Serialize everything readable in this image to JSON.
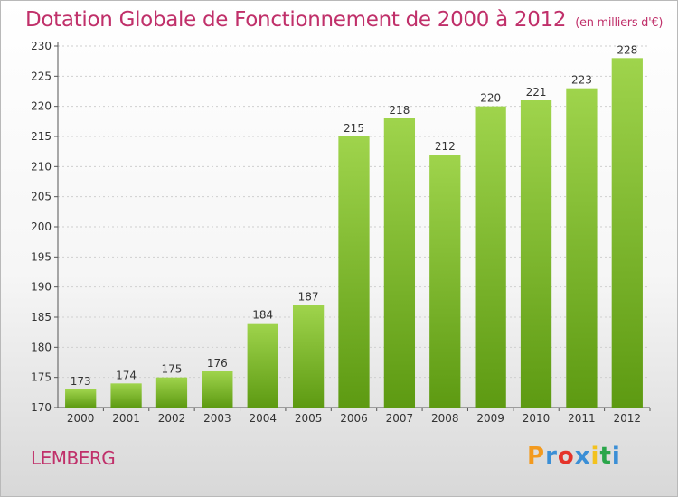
{
  "header": {
    "title": "Dotation Globale de Fonctionnement de 2000 à 2012",
    "subtitle": "(en milliers d'€)"
  },
  "footer": {
    "commune": "LEMBERG",
    "logo_letters": [
      "P",
      "r",
      "o",
      "x",
      "i",
      "t",
      "i"
    ],
    "logo_colors": [
      "#f39a1e",
      "#3b8fd6",
      "#e5332a",
      "#3b8fd6",
      "#f3c21e",
      "#2aa64a",
      "#3b8fd6"
    ]
  },
  "chart_data": {
    "type": "bar",
    "title": "Dotation Globale de Fonctionnement de 2000 à 2012",
    "subtitle": "(en milliers d'€)",
    "xlabel": "",
    "ylabel": "",
    "categories": [
      "2000",
      "2001",
      "2002",
      "2003",
      "2004",
      "2005",
      "2006",
      "2007",
      "2008",
      "2009",
      "2010",
      "2011",
      "2012"
    ],
    "values": [
      173,
      174,
      175,
      176,
      184,
      187,
      215,
      218,
      212,
      220,
      221,
      223,
      228
    ],
    "ylim": [
      170,
      230
    ],
    "yticks": [
      170,
      175,
      180,
      185,
      190,
      195,
      200,
      205,
      210,
      215,
      220,
      225,
      230
    ],
    "grid": true,
    "bar_color_top": "#9fd44c",
    "bar_color_bottom": "#5d9a12"
  }
}
